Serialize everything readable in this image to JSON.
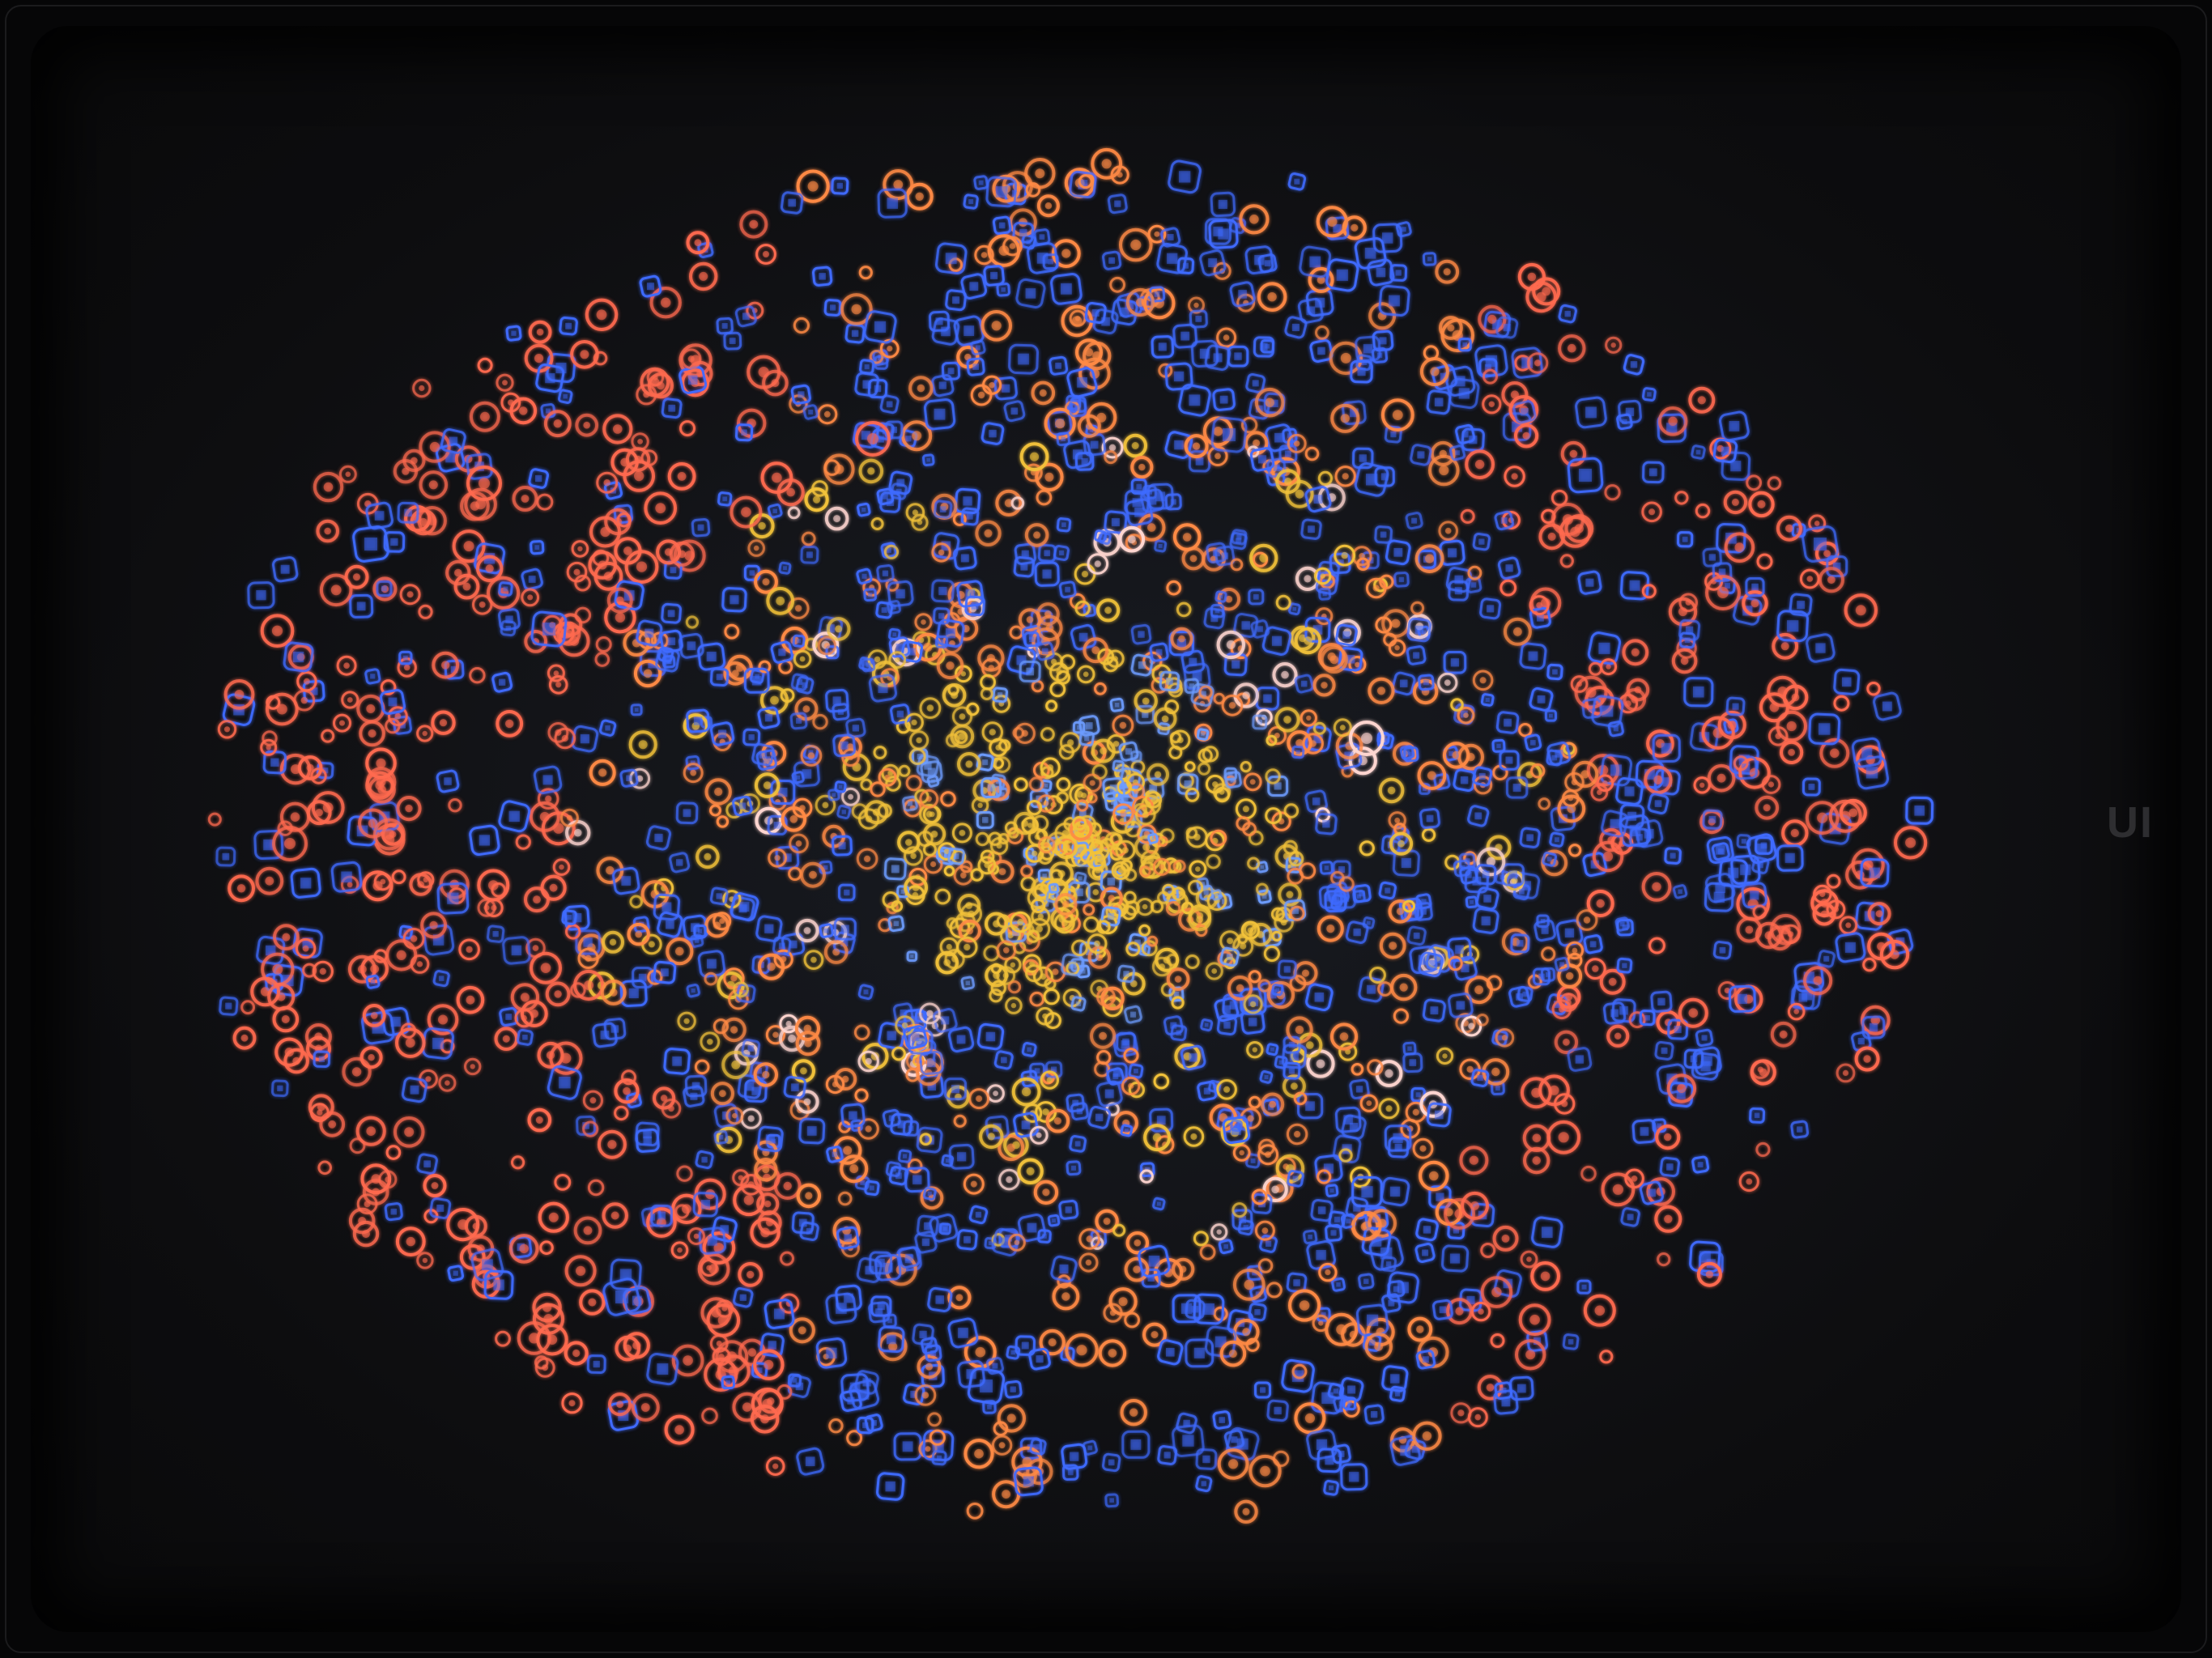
{
  "image": {
    "background_color": "#0b0b0d",
    "edge_label": "UI",
    "palette": {
      "blue": "#3f6bff",
      "blue_light": "#6d9cff",
      "orange": "#ff8a45",
      "red_orange": "#ff6a4f",
      "yellow": "#f2c23a",
      "white_highlight": "#ffd6d0"
    },
    "clusters": [
      {
        "name": "outer-blue-ring",
        "color_key": "blue",
        "description_icon": "square-node-icon"
      },
      {
        "name": "outer-orange-ring",
        "color_key": "red_orange",
        "description_icon": "circle-node-icon"
      },
      {
        "name": "inner-yellow-core",
        "color_key": "yellow",
        "description_icon": "circle-node-icon"
      }
    ]
  }
}
